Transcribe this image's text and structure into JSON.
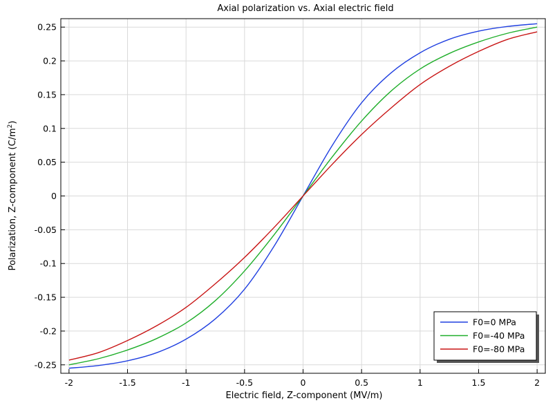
{
  "chart_data": {
    "type": "line",
    "title": "Axial polarization vs. Axial electric field",
    "xlabel": "Electric field, Z-component (MV/m)",
    "ylabel_main": "Polarization, Z-component (C/m",
    "ylabel_sup": "2",
    "ylabel_close": ")",
    "xlim": [
      -2.07,
      2.07
    ],
    "ylim": [
      -0.2625,
      0.2625
    ],
    "x_ticks": [
      -2,
      -1.5,
      -1,
      -0.5,
      0,
      0.5,
      1,
      1.5,
      2
    ],
    "x_tick_labels": [
      "-2",
      "-1.5",
      "-1",
      "-0.5",
      "0",
      "0.5",
      "1",
      "1.5",
      "2"
    ],
    "y_ticks": [
      -0.25,
      -0.2,
      -0.15,
      -0.1,
      -0.05,
      0,
      0.05,
      0.1,
      0.15,
      0.2,
      0.25
    ],
    "y_tick_labels": [
      "-0.25",
      "-0.2",
      "-0.15",
      "-0.1",
      "-0.05",
      "0",
      "0.05",
      "0.1",
      "0.15",
      "0.2",
      "0.25"
    ],
    "grid": true,
    "legend_position": "bottom-right",
    "x": [
      -2,
      -1.75,
      -1.5,
      -1.25,
      -1,
      -0.75,
      -0.5,
      -0.25,
      0,
      0.25,
      0.5,
      0.75,
      1,
      1.25,
      1.5,
      1.75,
      2
    ],
    "series": [
      {
        "name": "F0=0 MPa",
        "color": "#1f3fe0",
        "values": [
          -0.255,
          -0.251,
          -0.244,
          -0.232,
          -0.212,
          -0.182,
          -0.138,
          -0.075,
          0,
          0.075,
          0.138,
          0.182,
          0.212,
          0.232,
          0.244,
          0.251,
          0.255
        ]
      },
      {
        "name": "F0=-40 MPa",
        "color": "#1fae2a",
        "values": [
          -0.25,
          -0.241,
          -0.228,
          -0.211,
          -0.188,
          -0.155,
          -0.111,
          -0.058,
          0,
          0.058,
          0.111,
          0.155,
          0.188,
          0.211,
          0.228,
          0.241,
          0.25
        ]
      },
      {
        "name": "F0=-80 MPa",
        "color": "#c81414",
        "values": [
          -0.243,
          -0.232,
          -0.214,
          -0.192,
          -0.165,
          -0.13,
          -0.091,
          -0.047,
          0,
          0.047,
          0.091,
          0.13,
          0.165,
          0.192,
          0.214,
          0.232,
          0.243
        ]
      }
    ]
  }
}
